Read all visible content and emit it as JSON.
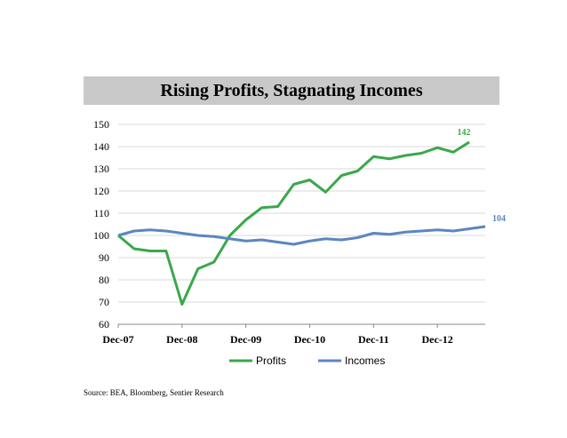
{
  "chart_data": {
    "type": "line",
    "title": "Rising Profits, Stagnating Incomes",
    "xlabel": "",
    "ylabel": "",
    "ylim": [
      60,
      150
    ],
    "yticks": [
      60,
      70,
      80,
      90,
      100,
      110,
      120,
      130,
      140,
      150
    ],
    "xtick_labels": [
      "Dec-07",
      "Dec-08",
      "Dec-09",
      "Dec-10",
      "Dec-11",
      "Dec-12"
    ],
    "xlim": [
      0,
      23
    ],
    "grid": true,
    "legend": "bottom",
    "series": [
      {
        "name": "Profits",
        "color": "#3aa84a",
        "end_label": "142",
        "values": [
          100,
          94,
          93,
          93,
          69,
          85,
          88,
          100,
          107,
          112.5,
          113,
          123,
          125,
          119.5,
          127,
          129,
          135.5,
          134.5,
          136,
          137,
          139.5,
          137.5,
          142
        ]
      },
      {
        "name": "Incomes",
        "color": "#5b86bf",
        "end_label": "104",
        "values": [
          100,
          102,
          102.5,
          102,
          101,
          100,
          99.5,
          98.5,
          97.5,
          98,
          97,
          96,
          97.5,
          98.5,
          98,
          99,
          101,
          100.5,
          101.5,
          102,
          102.5,
          102,
          103,
          104
        ]
      }
    ]
  },
  "source": "Source: BEA, Bloomberg, Sentier Research"
}
